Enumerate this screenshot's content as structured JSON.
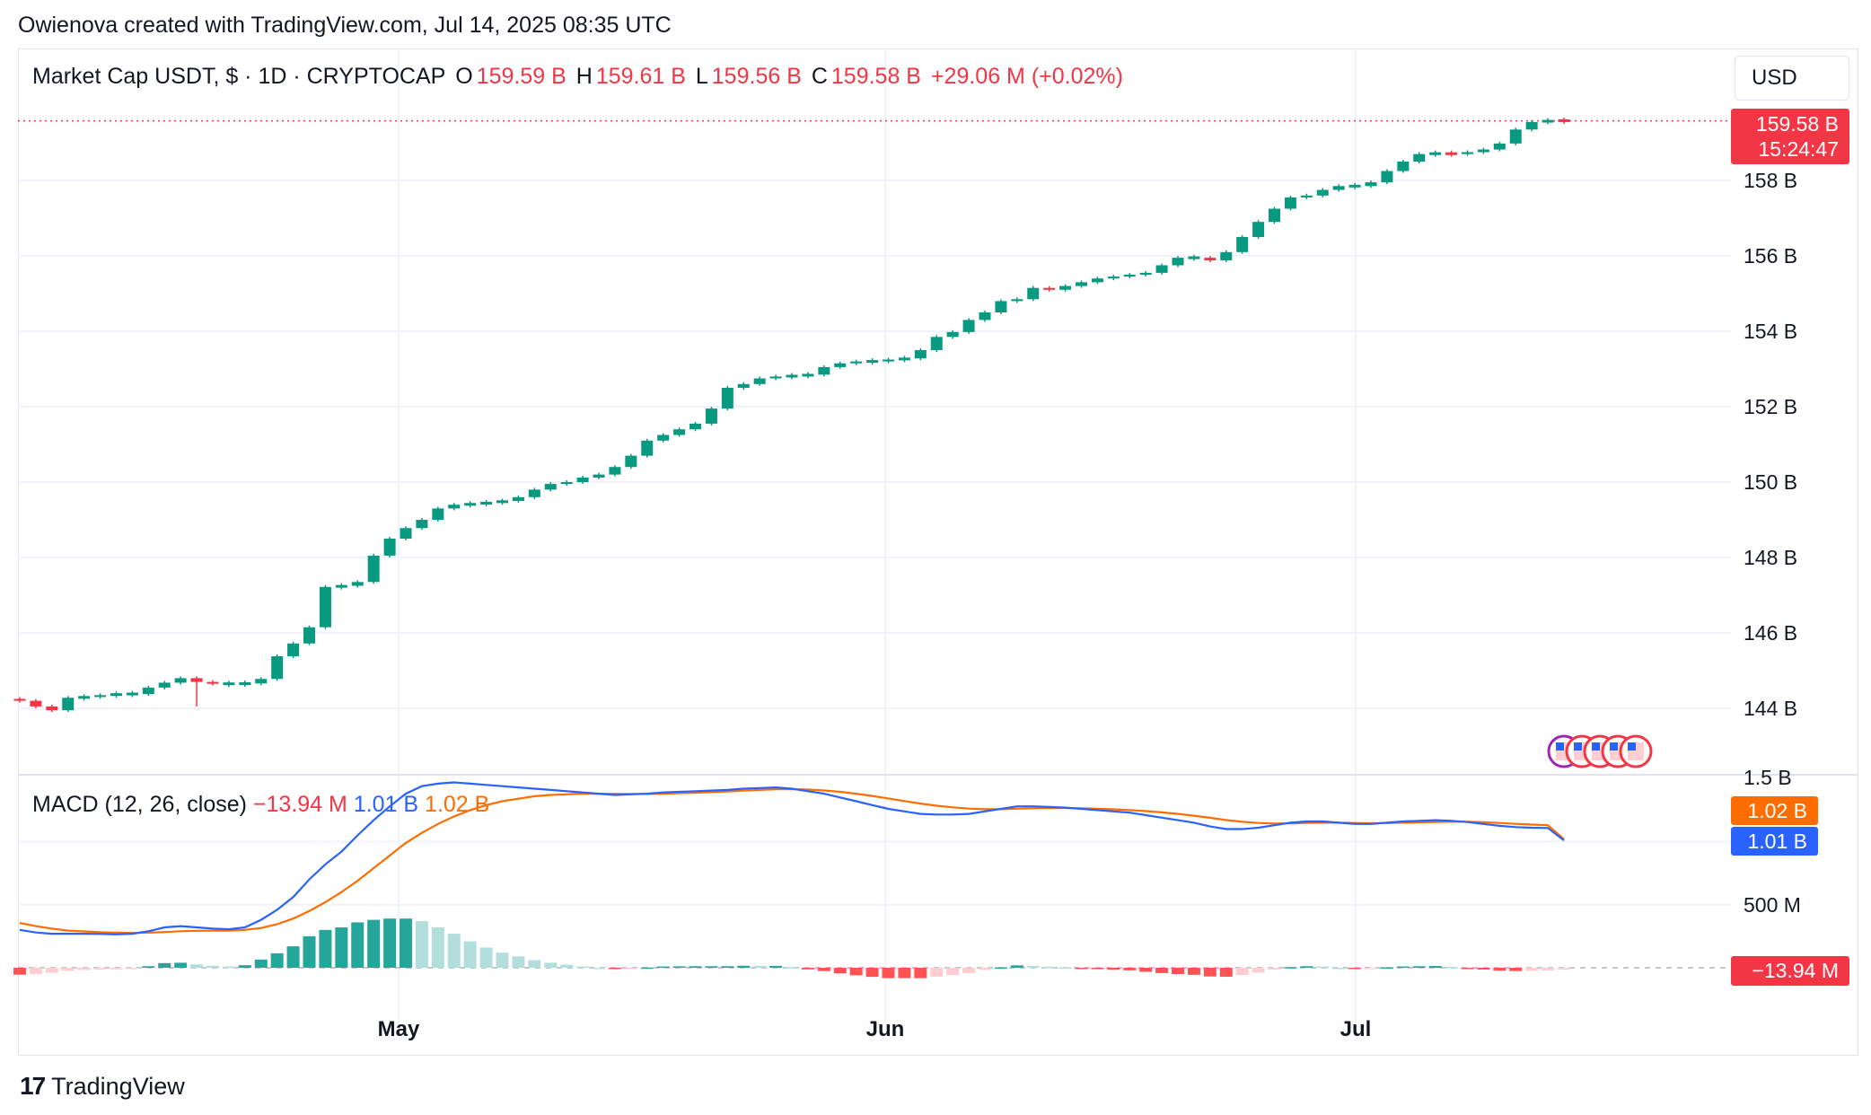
{
  "attribution": "Owienova created with TradingView.com, Jul 14, 2025 08:35 UTC",
  "legend": {
    "symbol": "Market Cap USDT, $ · 1D · CRYPTOCAP",
    "o_label": "O",
    "o_value": "159.59 B",
    "h_label": "H",
    "h_value": "159.61 B",
    "l_label": "L",
    "l_value": "159.56 B",
    "c_label": "C",
    "c_value": "159.58 B",
    "change": "+29.06 M (+0.02%)"
  },
  "currency_button": "USD",
  "price_tag": {
    "price": "159.58 B",
    "countdown": "15:24:47",
    "color": "#f23645"
  },
  "macd_legend": {
    "title": "MACD (12, 26, close)",
    "hist": "−13.94 M",
    "macd": "1.01 B",
    "signal": "1.02 B"
  },
  "macd_tags": {
    "signal": "1.02 B",
    "macd": "1.01 B",
    "hist": "−13.94 M"
  },
  "price_axis_labels": [
    "158 B",
    "156 B",
    "154 B",
    "152 B",
    "150 B",
    "148 B",
    "146 B",
    "144 B",
    "1.5 B"
  ],
  "macd_axis_labels": [
    "500 M"
  ],
  "time_axis_labels": [
    "May",
    "Jun",
    "Jul"
  ],
  "footer_logo": "TradingView",
  "colors": {
    "up": "#089981",
    "down": "#f23645",
    "macd": "#2962ff",
    "signal": "#ff6d00",
    "grid": "#f0f3fa"
  },
  "chart_data": [
    {
      "type": "candlestick",
      "title": "Market Cap USDT, $ · 1D · CRYPTOCAP",
      "unit": "B USD",
      "y_ticks": [
        144,
        146,
        148,
        150,
        152,
        154,
        156,
        158
      ],
      "ylim": [
        142.5,
        160.6
      ],
      "x_labels": [
        "May",
        "Jun",
        "Jul"
      ],
      "grid": true,
      "last_close": 159.58,
      "closes": [
        144.2,
        144.05,
        143.95,
        144.28,
        144.3,
        144.35,
        144.38,
        144.38,
        144.55,
        144.68,
        144.8,
        144.7,
        144.65,
        144.65,
        144.66,
        144.78,
        145.38,
        145.72,
        146.15,
        147.22,
        147.25,
        147.35,
        148.05,
        148.5,
        148.78,
        149.0,
        149.3,
        149.4,
        149.42,
        149.46,
        149.5,
        149.6,
        149.8,
        149.95,
        150.0,
        150.12,
        150.2,
        150.4,
        150.7,
        151.1,
        151.25,
        151.4,
        151.55,
        151.95,
        152.5,
        152.6,
        152.75,
        152.8,
        152.82,
        152.85,
        153.05,
        153.15,
        153.2,
        153.2,
        153.25,
        153.28,
        153.5,
        153.85,
        153.98,
        154.3,
        154.5,
        154.8,
        154.85,
        155.15,
        155.1,
        155.2,
        155.3,
        155.4,
        155.45,
        155.5,
        155.55,
        155.75,
        155.95,
        155.95,
        155.88,
        156.1,
        156.5,
        156.9,
        157.25,
        157.55,
        157.6,
        157.75,
        157.85,
        157.85,
        157.95,
        158.25,
        158.5,
        158.7,
        158.72,
        158.7,
        158.75,
        158.82,
        158.98,
        159.35,
        159.55,
        159.59,
        159.58
      ]
    },
    {
      "type": "line+bar",
      "title": "MACD (12, 26, close)",
      "unit": "M USD",
      "y_ticks": [
        500
      ],
      "macd_last": 1010,
      "signal_last": 1020,
      "hist_last": -13.94,
      "macd": [
        300,
        280,
        270,
        270,
        270,
        268,
        265,
        270,
        290,
        320,
        330,
        320,
        310,
        305,
        320,
        380,
        460,
        560,
        700,
        820,
        920,
        1050,
        1170,
        1280,
        1380,
        1440,
        1460,
        1470,
        1460,
        1450,
        1440,
        1430,
        1420,
        1410,
        1400,
        1390,
        1380,
        1370,
        1375,
        1380,
        1390,
        1395,
        1400,
        1405,
        1410,
        1420,
        1425,
        1430,
        1420,
        1400,
        1380,
        1350,
        1320,
        1290,
        1260,
        1240,
        1220,
        1215,
        1215,
        1220,
        1240,
        1260,
        1280,
        1280,
        1275,
        1270,
        1260,
        1250,
        1240,
        1230,
        1210,
        1190,
        1170,
        1150,
        1120,
        1100,
        1100,
        1110,
        1130,
        1150,
        1160,
        1160,
        1150,
        1140,
        1140,
        1150,
        1160,
        1165,
        1170,
        1165,
        1155,
        1140,
        1125,
        1115,
        1110,
        1108,
        1010
      ],
      "signal": [
        355,
        330,
        310,
        295,
        288,
        282,
        278,
        276,
        278,
        283,
        290,
        293,
        294,
        295,
        300,
        315,
        345,
        390,
        450,
        520,
        600,
        690,
        790,
        890,
        990,
        1070,
        1140,
        1200,
        1250,
        1290,
        1320,
        1340,
        1360,
        1370,
        1375,
        1380,
        1380,
        1378,
        1378,
        1378,
        1380,
        1384,
        1388,
        1393,
        1398,
        1404,
        1410,
        1415,
        1416,
        1413,
        1406,
        1395,
        1380,
        1362,
        1342,
        1322,
        1302,
        1285,
        1272,
        1262,
        1257,
        1257,
        1261,
        1265,
        1267,
        1267,
        1265,
        1261,
        1256,
        1250,
        1242,
        1232,
        1220,
        1206,
        1189,
        1171,
        1157,
        1148,
        1144,
        1145,
        1148,
        1150,
        1150,
        1148,
        1146,
        1147,
        1150,
        1153,
        1156,
        1158,
        1158,
        1154,
        1148,
        1141,
        1135,
        1130,
        1020
      ],
      "hist": [
        -55,
        -50,
        -40,
        -25,
        -18,
        -14,
        -13,
        -6,
        12,
        37,
        40,
        27,
        16,
        10,
        20,
        65,
        115,
        170,
        250,
        300,
        320,
        360,
        380,
        390,
        390,
        370,
        320,
        270,
        210,
        160,
        120,
        90,
        60,
        40,
        25,
        10,
        0,
        -8,
        -3,
        2,
        10,
        11,
        12,
        12,
        12,
        16,
        15,
        15,
        4,
        -13,
        -26,
        -45,
        -60,
        -72,
        -82,
        -82,
        -82,
        -70,
        -57,
        -42,
        -17,
        3,
        19,
        15,
        8,
        3,
        -5,
        -11,
        -16,
        -20,
        -32,
        -42,
        -50,
        -56,
        -69,
        -71,
        -57,
        -38,
        -14,
        5,
        12,
        10,
        0,
        -8,
        -6,
        3,
        10,
        12,
        14,
        7,
        -3,
        -14,
        -23,
        -26,
        -25,
        -22,
        -14
      ]
    }
  ]
}
